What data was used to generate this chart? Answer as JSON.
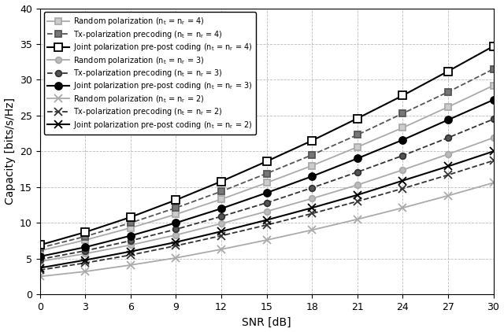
{
  "snr_db": [
    0,
    3,
    6,
    9,
    12,
    15,
    18,
    21,
    24,
    27,
    30
  ],
  "series": [
    {
      "label": "Random polarization (n$_\\mathrm{t}$ = n$_\\mathrm{r}$ = 4)",
      "color": "#aaaaaa",
      "linestyle": "-",
      "marker": "s",
      "markerfacecolor": "#cccccc",
      "markeredgecolor": "#aaaaaa",
      "linewidth": 1.3,
      "markersize": 5.5,
      "values": [
        6.1,
        7.6,
        9.3,
        11.2,
        13.3,
        15.6,
        18.0,
        20.6,
        23.3,
        26.2,
        29.2
      ]
    },
    {
      "label": "Tx-polarization precoding (n$_\\mathrm{t}$ = n$_\\mathrm{r}$ = 4)",
      "color": "#555555",
      "linestyle": "--",
      "marker": "s",
      "markerfacecolor": "#777777",
      "markeredgecolor": "#555555",
      "linewidth": 1.3,
      "markersize": 5.5,
      "values": [
        6.5,
        8.1,
        10.0,
        12.1,
        14.4,
        16.9,
        19.5,
        22.3,
        25.3,
        28.3,
        31.5
      ]
    },
    {
      "label": "Joint polarization pre-post coding (n$_\\mathrm{t}$ = n$_\\mathrm{r}$ = 4)",
      "color": "#000000",
      "linestyle": "-",
      "marker": "s",
      "markerfacecolor": "white",
      "markeredgecolor": "#000000",
      "linewidth": 1.5,
      "markersize": 6.5,
      "values": [
        6.9,
        8.7,
        10.8,
        13.2,
        15.8,
        18.6,
        21.5,
        24.6,
        27.8,
        31.2,
        34.7
      ]
    },
    {
      "label": "Random polarization (n$_\\mathrm{t}$ = n$_\\mathrm{r}$ = 3)",
      "color": "#aaaaaa",
      "linestyle": "-",
      "marker": "o",
      "markerfacecolor": "#bbbbbb",
      "markeredgecolor": "#aaaaaa",
      "linewidth": 1.3,
      "markersize": 5.5,
      "values": [
        4.6,
        5.7,
        6.9,
        8.3,
        9.9,
        11.6,
        13.4,
        15.3,
        17.4,
        19.6,
        21.9
      ]
    },
    {
      "label": "Tx-polarization precoding (n$_\\mathrm{t}$ = n$_\\mathrm{r}$ = 3)",
      "color": "#333333",
      "linestyle": "--",
      "marker": "o",
      "markerfacecolor": "#555555",
      "markeredgecolor": "#333333",
      "linewidth": 1.3,
      "markersize": 5.5,
      "values": [
        4.9,
        6.1,
        7.5,
        9.1,
        10.9,
        12.8,
        14.9,
        17.1,
        19.4,
        21.9,
        24.5
      ]
    },
    {
      "label": "Joint polarization pre-post coding (n$_\\mathrm{t}$ = n$_\\mathrm{r}$ = 3)",
      "color": "#000000",
      "linestyle": "-",
      "marker": "o",
      "markerfacecolor": "#000000",
      "markeredgecolor": "#000000",
      "linewidth": 1.5,
      "markersize": 6.5,
      "values": [
        5.3,
        6.6,
        8.2,
        10.0,
        12.0,
        14.2,
        16.5,
        19.0,
        21.6,
        24.4,
        27.2
      ]
    },
    {
      "label": "Random polarization (n$_\\mathrm{t}$ = n$_\\mathrm{r}$ = 2)",
      "color": "#aaaaaa",
      "linestyle": "-",
      "marker": "x",
      "markerfacecolor": "#aaaaaa",
      "markeredgecolor": "#aaaaaa",
      "linewidth": 1.3,
      "markersize": 6.5,
      "values": [
        2.5,
        3.2,
        4.1,
        5.1,
        6.3,
        7.6,
        9.0,
        10.5,
        12.1,
        13.8,
        15.6
      ]
    },
    {
      "label": "Tx-polarization precoding (n$_\\mathrm{t}$ = n$_\\mathrm{r}$ = 2)",
      "color": "#333333",
      "linestyle": "--",
      "marker": "x",
      "markerfacecolor": "#333333",
      "markeredgecolor": "#333333",
      "linewidth": 1.3,
      "markersize": 6.5,
      "values": [
        3.4,
        4.4,
        5.5,
        6.8,
        8.2,
        9.7,
        11.3,
        13.0,
        14.8,
        16.7,
        18.7
      ]
    },
    {
      "label": "Joint polarization pre-post coding (n$_\\mathrm{t}$ = n$_\\mathrm{r}$ = 2)",
      "color": "#000000",
      "linestyle": "-",
      "marker": "x",
      "markerfacecolor": "#000000",
      "markeredgecolor": "#000000",
      "linewidth": 1.5,
      "markersize": 7.5,
      "values": [
        3.7,
        4.8,
        6.0,
        7.3,
        8.8,
        10.4,
        12.1,
        13.9,
        15.9,
        17.9,
        20.0
      ]
    }
  ],
  "xlabel": "SNR [dB]",
  "ylabel": "Capacity [bits/s/Hz]",
  "xlim": [
    0,
    30
  ],
  "ylim": [
    0,
    40
  ],
  "xticks": [
    0,
    3,
    6,
    9,
    12,
    15,
    18,
    21,
    24,
    27,
    30
  ],
  "yticks": [
    0,
    5,
    10,
    15,
    20,
    25,
    30,
    35,
    40
  ],
  "grid_color": "#bbbbbb",
  "grid_linestyle": "--",
  "background_color": "white",
  "legend_fontsize": 7.0,
  "axis_fontsize": 10,
  "tick_fontsize": 9
}
